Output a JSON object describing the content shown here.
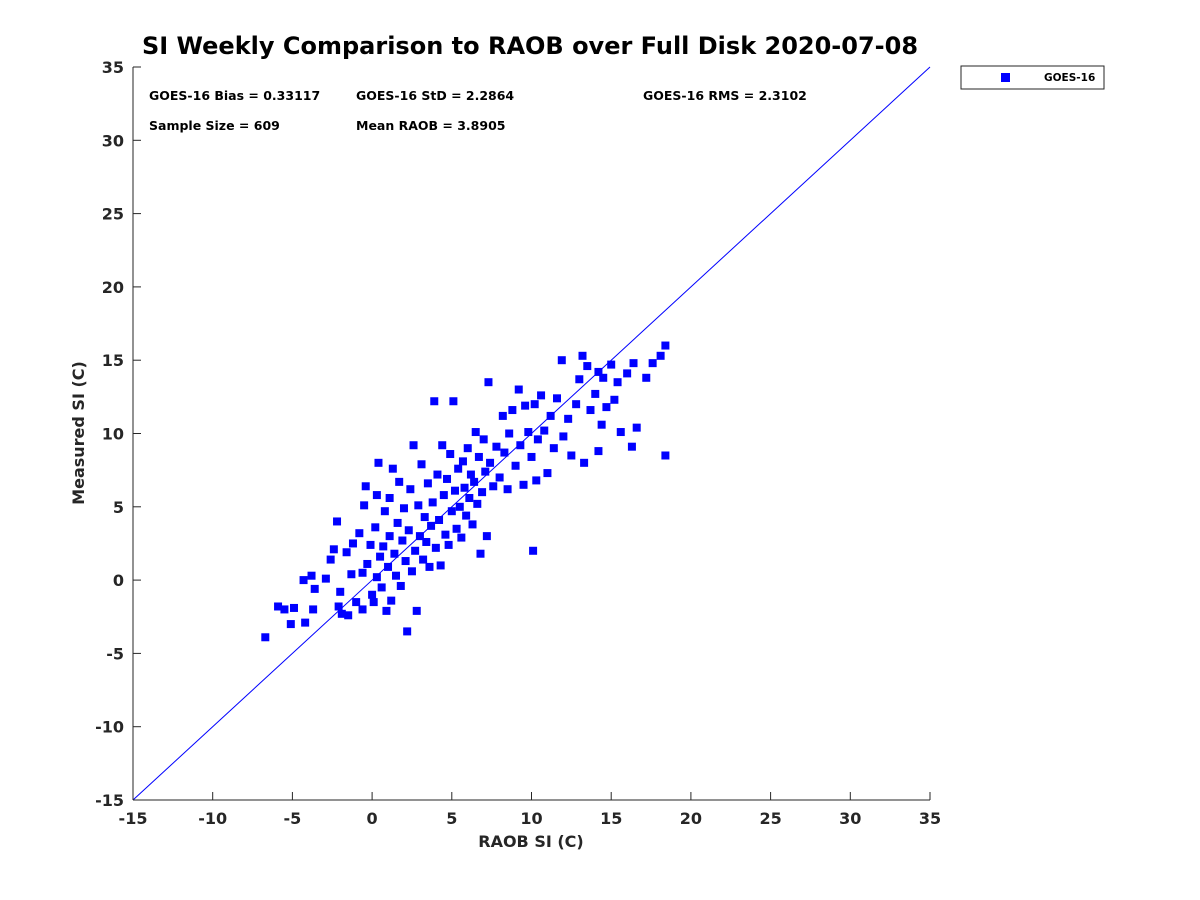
{
  "chart_data": {
    "type": "scatter",
    "title": "SI Weekly Comparison to RAOB over Full Disk 2020-07-08",
    "xlabel": "RAOB SI (C)",
    "ylabel": "Measured SI (C)",
    "xlim": [
      -15,
      35
    ],
    "ylim": [
      -15,
      35
    ],
    "xticks": [
      "-15",
      "-10",
      "-5",
      "0",
      "5",
      "10",
      "15",
      "20",
      "25",
      "30",
      "35"
    ],
    "yticks": [
      "35",
      "30",
      "25",
      "20",
      "15",
      "10",
      "5",
      "0",
      "-5",
      "-10",
      "-15"
    ],
    "grid": false,
    "legend": {
      "position": "top-right-outside",
      "entries": [
        "GOES-16"
      ]
    },
    "series_color": "#0000ff",
    "reference_line": {
      "label": "1:1",
      "from": [
        -15,
        -15
      ],
      "to": [
        35,
        35
      ],
      "color": "#0000ff"
    },
    "stats": {
      "bias": "GOES-16 Bias = 0.33117",
      "std": "GOES-16 StD = 2.2864",
      "rms": "GOES-16 RMS = 2.3102",
      "sample_size": "Sample Size = 609",
      "mean_raob": "Mean RAOB = 3.8905"
    },
    "series": [
      {
        "name": "GOES-16",
        "points": [
          [
            -6.7,
            -3.9
          ],
          [
            -5.9,
            -1.8
          ],
          [
            -5.5,
            -2.0
          ],
          [
            -5.1,
            -3.0
          ],
          [
            -4.9,
            -1.9
          ],
          [
            -4.2,
            -2.9
          ],
          [
            -4.3,
            0.0
          ],
          [
            -3.8,
            0.3
          ],
          [
            -3.6,
            -0.6
          ],
          [
            -3.7,
            -2.0
          ],
          [
            -2.9,
            0.1
          ],
          [
            -2.6,
            1.4
          ],
          [
            -2.4,
            2.1
          ],
          [
            -2.2,
            4.0
          ],
          [
            -2.1,
            -1.8
          ],
          [
            -2.0,
            -0.8
          ],
          [
            -1.9,
            -2.3
          ],
          [
            -1.6,
            1.9
          ],
          [
            -1.5,
            -2.4
          ],
          [
            -1.3,
            0.4
          ],
          [
            -1.2,
            2.5
          ],
          [
            -1.0,
            -1.5
          ],
          [
            -0.8,
            3.2
          ],
          [
            -0.6,
            -2.0
          ],
          [
            -0.6,
            0.5
          ],
          [
            -0.5,
            5.1
          ],
          [
            -0.4,
            6.4
          ],
          [
            -0.3,
            1.1
          ],
          [
            -0.1,
            2.4
          ],
          [
            0.0,
            -1.0
          ],
          [
            0.1,
            -1.5
          ],
          [
            0.2,
            3.6
          ],
          [
            0.3,
            0.2
          ],
          [
            0.3,
            5.8
          ],
          [
            0.4,
            8.0
          ],
          [
            0.5,
            1.6
          ],
          [
            0.6,
            -0.5
          ],
          [
            0.7,
            2.3
          ],
          [
            0.8,
            4.7
          ],
          [
            0.9,
            -2.1
          ],
          [
            1.0,
            0.9
          ],
          [
            1.1,
            3.0
          ],
          [
            1.1,
            5.6
          ],
          [
            1.2,
            -1.4
          ],
          [
            1.3,
            7.6
          ],
          [
            1.4,
            1.8
          ],
          [
            1.5,
            0.3
          ],
          [
            1.6,
            3.9
          ],
          [
            1.7,
            6.7
          ],
          [
            1.8,
            -0.4
          ],
          [
            1.9,
            2.7
          ],
          [
            2.0,
            4.9
          ],
          [
            2.1,
            1.3
          ],
          [
            2.2,
            -3.5
          ],
          [
            2.3,
            3.4
          ],
          [
            2.4,
            6.2
          ],
          [
            2.5,
            0.6
          ],
          [
            2.6,
            9.2
          ],
          [
            2.7,
            2.0
          ],
          [
            2.8,
            -2.1
          ],
          [
            2.9,
            5.1
          ],
          [
            3.0,
            3.0
          ],
          [
            3.1,
            7.9
          ],
          [
            3.2,
            1.4
          ],
          [
            3.3,
            4.3
          ],
          [
            3.4,
            2.6
          ],
          [
            3.5,
            6.6
          ],
          [
            3.6,
            0.9
          ],
          [
            3.7,
            3.7
          ],
          [
            3.8,
            5.3
          ],
          [
            3.9,
            12.2
          ],
          [
            4.0,
            2.2
          ],
          [
            4.1,
            7.2
          ],
          [
            4.2,
            4.1
          ],
          [
            4.3,
            1.0
          ],
          [
            4.4,
            9.2
          ],
          [
            4.5,
            5.8
          ],
          [
            4.6,
            3.1
          ],
          [
            4.7,
            6.9
          ],
          [
            4.8,
            2.4
          ],
          [
            4.9,
            8.6
          ],
          [
            5.0,
            4.7
          ],
          [
            5.1,
            12.2
          ],
          [
            5.2,
            6.1
          ],
          [
            5.3,
            3.5
          ],
          [
            5.4,
            7.6
          ],
          [
            5.5,
            5.0
          ],
          [
            5.6,
            2.9
          ],
          [
            5.7,
            8.1
          ],
          [
            5.8,
            6.3
          ],
          [
            5.9,
            4.4
          ],
          [
            6.0,
            9.0
          ],
          [
            6.1,
            5.6
          ],
          [
            6.2,
            7.2
          ],
          [
            6.3,
            3.8
          ],
          [
            6.4,
            6.7
          ],
          [
            6.5,
            10.1
          ],
          [
            6.6,
            5.2
          ],
          [
            6.7,
            8.4
          ],
          [
            6.8,
            1.8
          ],
          [
            6.9,
            6.0
          ],
          [
            7.0,
            9.6
          ],
          [
            7.1,
            7.4
          ],
          [
            7.2,
            3.0
          ],
          [
            7.3,
            13.5
          ],
          [
            7.4,
            8.0
          ],
          [
            7.6,
            6.4
          ],
          [
            7.8,
            9.1
          ],
          [
            8.0,
            7.0
          ],
          [
            8.2,
            11.2
          ],
          [
            8.3,
            8.7
          ],
          [
            8.5,
            6.2
          ],
          [
            8.6,
            10.0
          ],
          [
            8.8,
            11.6
          ],
          [
            9.0,
            7.8
          ],
          [
            9.2,
            13.0
          ],
          [
            9.3,
            9.2
          ],
          [
            9.5,
            6.5
          ],
          [
            9.6,
            11.9
          ],
          [
            9.8,
            10.1
          ],
          [
            10.0,
            8.4
          ],
          [
            10.1,
            2.0
          ],
          [
            10.2,
            12.0
          ],
          [
            10.3,
            6.8
          ],
          [
            10.4,
            9.6
          ],
          [
            10.6,
            12.6
          ],
          [
            10.8,
            10.2
          ],
          [
            11.0,
            7.3
          ],
          [
            11.2,
            11.2
          ],
          [
            11.4,
            9.0
          ],
          [
            11.6,
            12.4
          ],
          [
            11.9,
            15.0
          ],
          [
            12.0,
            9.8
          ],
          [
            12.3,
            11.0
          ],
          [
            12.5,
            8.5
          ],
          [
            12.8,
            12.0
          ],
          [
            13.0,
            13.7
          ],
          [
            13.2,
            15.3
          ],
          [
            13.3,
            8.0
          ],
          [
            13.5,
            14.6
          ],
          [
            13.7,
            11.6
          ],
          [
            14.0,
            12.7
          ],
          [
            14.2,
            8.8
          ],
          [
            14.4,
            10.6
          ],
          [
            14.5,
            13.8
          ],
          [
            14.7,
            11.8
          ],
          [
            15.0,
            14.7
          ],
          [
            15.2,
            12.3
          ],
          [
            15.4,
            13.5
          ],
          [
            15.6,
            10.1
          ],
          [
            16.0,
            14.1
          ],
          [
            16.3,
            9.1
          ],
          [
            16.4,
            14.8
          ],
          [
            16.6,
            10.4
          ],
          [
            17.2,
            13.8
          ],
          [
            17.6,
            14.8
          ],
          [
            18.1,
            15.3
          ],
          [
            18.4,
            8.5
          ],
          [
            18.4,
            16.0
          ],
          [
            14.2,
            14.2
          ]
        ]
      }
    ]
  }
}
